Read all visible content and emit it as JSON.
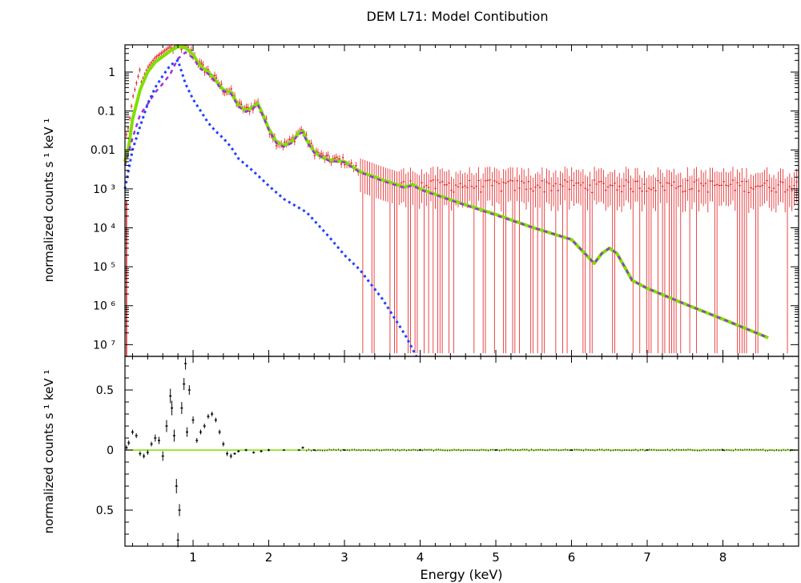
{
  "title": "DEM L71: Model Contibution",
  "colors": {
    "data": "#e41a1c",
    "total_model": "#7fe000",
    "component_1": "#2040ff",
    "component_2": "#a030e0",
    "residuals": "#000000",
    "zero_line": "#7fe000"
  },
  "chart_data": [
    {
      "type": "line",
      "panel": "top",
      "xlabel": "",
      "ylabel": "normalized counts s ¹ keV ¹",
      "xscale": "linear",
      "yscale": "log",
      "xlim": [
        0.1,
        9.0
      ],
      "ylim": [
        5e-08,
        5
      ],
      "xticks": [
        1,
        2,
        3,
        4,
        5,
        6,
        7,
        8
      ],
      "yticks": [
        1,
        0.1,
        0.01,
        0.001,
        0.0001,
        1e-05,
        1e-06,
        1e-07
      ],
      "ytick_labels": [
        "1",
        "0.1",
        "0.01",
        "10 ³",
        "10 ⁴",
        "10 ⁵",
        "10 ⁶",
        "10 ⁷"
      ],
      "series": [
        {
          "key": "total",
          "style": "thick-solid",
          "x": [
            0.1,
            0.15,
            0.2,
            0.3,
            0.4,
            0.5,
            0.6,
            0.7,
            0.8,
            0.9,
            1.0,
            1.1,
            1.2,
            1.3,
            1.4,
            1.5,
            1.6,
            1.7,
            1.8,
            1.85,
            1.9,
            2.0,
            2.1,
            2.2,
            2.3,
            2.4,
            2.45,
            2.5,
            2.6,
            2.7,
            2.8,
            3.0,
            3.2,
            3.5,
            3.8,
            3.9,
            4.0,
            4.5,
            5.0,
            5.5,
            6.0,
            6.3,
            6.4,
            6.5,
            6.6,
            6.7,
            6.8,
            7.0,
            7.5,
            8.0,
            8.6
          ],
          "y": [
            0.005,
            0.012,
            0.06,
            0.35,
            1.0,
            1.8,
            2.5,
            3.5,
            4.5,
            4.2,
            2.8,
            1.4,
            1.0,
            0.6,
            0.35,
            0.3,
            0.14,
            0.1,
            0.13,
            0.16,
            0.1,
            0.035,
            0.016,
            0.013,
            0.016,
            0.028,
            0.03,
            0.018,
            0.009,
            0.0065,
            0.0055,
            0.005,
            0.0028,
            0.0017,
            0.0011,
            0.0013,
            0.001,
            0.00045,
            0.00022,
            0.0001,
            5e-05,
            1.22e-05,
            2.2e-05,
            3e-05,
            2.2e-05,
            1e-05,
            4.5e-06,
            2.8e-06,
            1.1e-06,
            4.5e-07,
            1.5e-07
          ]
        },
        {
          "key": "component_1",
          "style": "dotted",
          "x": [
            0.1,
            0.2,
            0.3,
            0.4,
            0.5,
            0.6,
            0.7,
            0.8,
            0.85,
            0.9,
            1.0,
            1.1,
            1.2,
            1.3,
            1.4,
            1.5,
            1.6,
            1.8,
            2.0,
            2.2,
            2.5,
            2.8,
            3.0,
            3.2,
            3.5,
            3.8,
            3.95
          ],
          "y": [
            0.001,
            0.01,
            0.04,
            0.15,
            0.4,
            0.8,
            1.5,
            2.0,
            1.0,
            0.5,
            0.2,
            0.1,
            0.05,
            0.03,
            0.02,
            0.012,
            0.006,
            0.0028,
            0.0012,
            0.00055,
            0.00025,
            5.8e-05,
            2e-05,
            8.5e-06,
            1.5e-06,
            1.8e-07,
            5e-08
          ]
        },
        {
          "key": "component_2",
          "style": "dashed",
          "x": [
            0.1,
            0.2,
            0.3,
            0.4,
            0.5,
            0.6,
            0.7,
            0.8,
            0.9,
            1.0,
            1.1,
            1.2,
            1.3,
            1.4,
            1.5,
            1.6,
            1.7,
            1.8,
            1.85,
            1.9,
            2.0,
            2.1,
            2.2,
            2.3,
            2.4,
            2.45,
            2.5,
            2.6,
            2.8,
            3.0,
            3.2,
            3.5,
            3.8,
            3.9,
            4.0,
            4.5,
            5.0,
            5.5,
            6.0,
            6.3,
            6.4,
            6.5,
            6.6,
            6.7,
            6.8,
            7.0,
            7.5,
            8.0,
            8.6
          ],
          "y": [
            0.004,
            0.02,
            0.08,
            0.15,
            0.3,
            0.5,
            0.9,
            2.2,
            3.2,
            2.3,
            1.2,
            0.9,
            0.55,
            0.33,
            0.28,
            0.13,
            0.095,
            0.12,
            0.15,
            0.095,
            0.033,
            0.015,
            0.012,
            0.015,
            0.026,
            0.028,
            0.017,
            0.0085,
            0.0052,
            0.0048,
            0.0027,
            0.0016,
            0.00105,
            0.00125,
            0.00095,
            0.00044,
            0.00021,
            0.0001,
            5e-05,
            1.22e-05,
            2.2e-05,
            3e-05,
            2.2e-05,
            1e-05,
            4.5e-06,
            2.8e-06,
            1.1e-06,
            4.5e-07,
            1.5e-07
          ]
        }
      ]
    },
    {
      "type": "scatter",
      "panel": "bottom",
      "xlabel": "Energy (keV)",
      "ylabel": "normalized counts s ¹ keV ¹",
      "xlim": [
        0.1,
        9.0
      ],
      "ylim": [
        -0.8,
        0.78
      ],
      "xticks": [
        1,
        2,
        3,
        4,
        5,
        6,
        7,
        8
      ],
      "xtick_labels": [
        "1",
        "2",
        "3",
        "4",
        "5",
        "6",
        "7",
        "8"
      ],
      "yticks": [
        0.5,
        0,
        -0.5
      ],
      "ytick_labels": [
        "0.5",
        "0",
        "0.5"
      ],
      "reference_line_y": 0,
      "series": [
        {
          "key": "residuals",
          "x": [
            0.12,
            0.15,
            0.2,
            0.25,
            0.3,
            0.35,
            0.4,
            0.45,
            0.5,
            0.55,
            0.6,
            0.65,
            0.7,
            0.72,
            0.75,
            0.78,
            0.8,
            0.82,
            0.85,
            0.88,
            0.9,
            0.92,
            0.95,
            1.0,
            1.05,
            1.1,
            1.15,
            1.2,
            1.25,
            1.3,
            1.35,
            1.4,
            1.45,
            1.5,
            1.55,
            1.6,
            1.7,
            1.8,
            1.9,
            2.0,
            2.2,
            2.4,
            2.45,
            2.6,
            3.0,
            4.0,
            5.0,
            6.0,
            7.0,
            8.0,
            8.9
          ],
          "y": [
            0.02,
            0.06,
            0.15,
            0.12,
            -0.03,
            -0.05,
            -0.02,
            0.05,
            0.1,
            0.08,
            -0.05,
            0.2,
            0.45,
            0.35,
            0.12,
            -0.3,
            -0.75,
            -0.5,
            0.35,
            0.55,
            0.72,
            0.15,
            0.5,
            0.25,
            0.08,
            0.15,
            0.2,
            0.28,
            0.3,
            0.25,
            0.15,
            0.05,
            -0.03,
            -0.05,
            -0.03,
            -0.01,
            0.0,
            -0.02,
            -0.01,
            0.0,
            0.0,
            0.0,
            0.02,
            0.0,
            0.0,
            0.0,
            0.0,
            0.0,
            0.0,
            0.0,
            0.0
          ],
          "err": [
            0.02,
            0.02,
            0.02,
            0.02,
            0.02,
            0.02,
            0.02,
            0.02,
            0.03,
            0.03,
            0.04,
            0.05,
            0.06,
            0.06,
            0.05,
            0.06,
            0.06,
            0.05,
            0.05,
            0.05,
            0.05,
            0.04,
            0.04,
            0.03,
            0.02,
            0.02,
            0.02,
            0.02,
            0.02,
            0.02,
            0.02,
            0.02,
            0.02,
            0.02,
            0.01,
            0.01,
            0.01,
            0.01,
            0.01,
            0.01,
            0.005,
            0.005,
            0.01,
            0.005,
            0.005,
            0.005,
            0.005,
            0.005,
            0.005,
            0.005,
            0.005
          ]
        }
      ]
    }
  ]
}
